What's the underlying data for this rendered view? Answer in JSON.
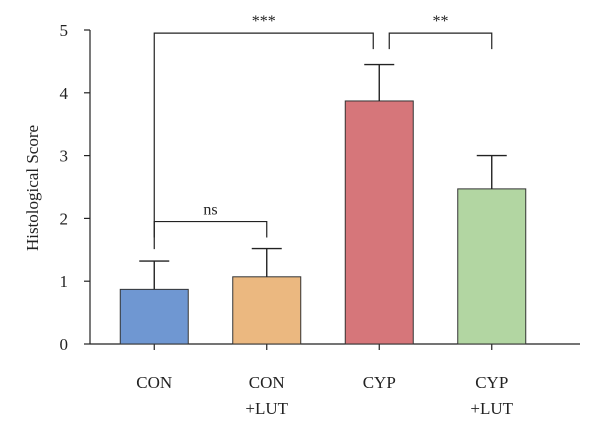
{
  "chart_data": {
    "type": "bar",
    "title": "",
    "xlabel": "",
    "ylabel": "Histological Score",
    "ylim": [
      0,
      5
    ],
    "yticks": [
      "0",
      "1",
      "2",
      "3",
      "4",
      "5"
    ],
    "categories": [
      {
        "line1": "CON",
        "line2": ""
      },
      {
        "line1": "CON",
        "line2": "+LUT"
      },
      {
        "line1": "CYP",
        "line2": ""
      },
      {
        "line1": "CYP",
        "line2": "+LUT"
      }
    ],
    "values": [
      0.87,
      1.07,
      3.87,
      2.47
    ],
    "errors": [
      0.45,
      0.45,
      0.58,
      0.53
    ],
    "colors": [
      "#6f97d2",
      "#ebb880",
      "#d6767a",
      "#b2d6a2"
    ],
    "grid": false,
    "legend": "none",
    "significance": [
      {
        "label": "ns",
        "from": 0,
        "to": 1,
        "y": 1.95
      },
      {
        "label": "***",
        "from": 0,
        "to": 2,
        "y": 4.95
      },
      {
        "label": "**",
        "from": 2,
        "to": 3,
        "y": 4.95
      }
    ]
  }
}
